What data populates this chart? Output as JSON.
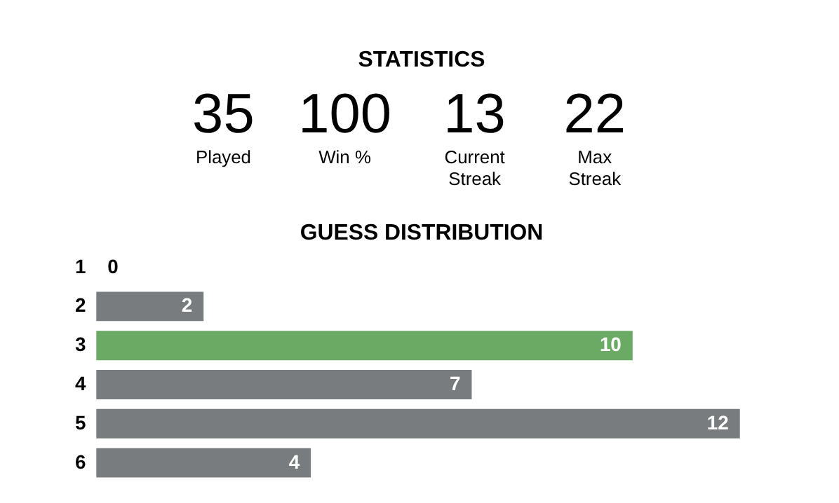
{
  "chart_data": {
    "type": "bar",
    "orientation": "horizontal",
    "title": "STATISTICS",
    "subtitle": "GUESS DISTRIBUTION",
    "annotations": [
      "35",
      "Played",
      "100",
      "Win %",
      "13",
      "Current\nStreak",
      "22",
      "Max\nStreak"
    ],
    "categories": [
      "1",
      "2",
      "3",
      "4",
      "5",
      "6"
    ],
    "values": [
      0,
      2,
      10,
      7,
      12,
      4
    ],
    "colors": [
      "#787c7e",
      "#787c7e",
      "#6aaa64",
      "#787c7e",
      "#787c7e",
      "#787c7e"
    ],
    "data_labels": true,
    "tick_labels": "y",
    "grid": false
  }
}
